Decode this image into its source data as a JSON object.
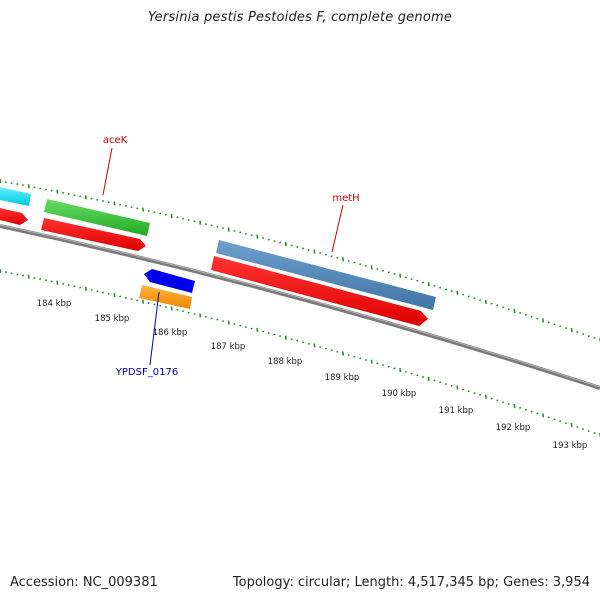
{
  "title": "Yersinia pestis Pestoides F, complete genome",
  "footer": {
    "accession": "Accession: NC_009381",
    "summary": "Topology: circular; Length: 4,517,345 bp; Genes: 3,954"
  },
  "ticks": [
    {
      "label": "184 kbp"
    },
    {
      "label": "185 kbp"
    },
    {
      "label": "186 kbp"
    },
    {
      "label": "187 kbp"
    },
    {
      "label": "188 kbp"
    },
    {
      "label": "189 kbp"
    },
    {
      "label": "190 kbp"
    },
    {
      "label": "191 kbp"
    },
    {
      "label": "192 kbp"
    },
    {
      "label": "193 kbp"
    }
  ],
  "genes": [
    {
      "name": "aceK",
      "color": "#cc0000"
    },
    {
      "name": "metH",
      "color": "#cc0000"
    },
    {
      "name": "YPDSF_0176",
      "color": "#0000aa"
    }
  ],
  "colors": {
    "backbone": "#7a7a7a",
    "gc_ticks": "#2e8b2e",
    "cds_red": "#ff0000",
    "green": "#33bb33",
    "cyan": "#00e5ff",
    "steelblue": "#4f86b8",
    "blue": "#0000ee",
    "orange": "#ff9900"
  }
}
